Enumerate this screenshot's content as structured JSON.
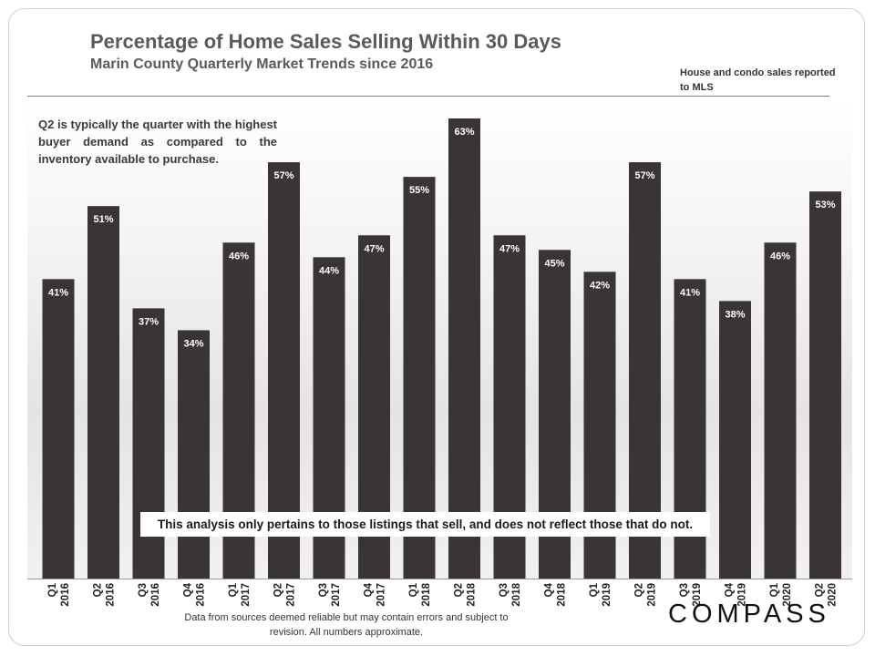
{
  "chart_data": {
    "type": "bar",
    "title": "Percentage of Home Sales Selling Within 30 Days",
    "subtitle": "Marin County Quarterly Market Trends since 2016",
    "categories": [
      [
        "Q1",
        "2016"
      ],
      [
        "Q2",
        "2016"
      ],
      [
        "Q3",
        "2016"
      ],
      [
        "Q4",
        "2016"
      ],
      [
        "Q1",
        "2017"
      ],
      [
        "Q2",
        "2017"
      ],
      [
        "Q3",
        "2017"
      ],
      [
        "Q4",
        "2017"
      ],
      [
        "Q1",
        "2018"
      ],
      [
        "Q2",
        "2018"
      ],
      [
        "Q3",
        "2018"
      ],
      [
        "Q4",
        "2018"
      ],
      [
        "Q1",
        "2019"
      ],
      [
        "Q2",
        "2019"
      ],
      [
        "Q3",
        "2019"
      ],
      [
        "Q4",
        "2019"
      ],
      [
        "Q1",
        "2020"
      ],
      [
        "Q2",
        "2020"
      ]
    ],
    "values": [
      41,
      51,
      37,
      34,
      46,
      57,
      44,
      47,
      55,
      63,
      47,
      45,
      42,
      57,
      41,
      38,
      46,
      53
    ],
    "value_suffix": "%",
    "ylim": [
      0,
      70
    ],
    "grid": false,
    "bar_color": "#3a3534"
  },
  "source_note": "House and condo sales reported to MLS",
  "annotation": "Q2 is typically the quarter with the highest buyer demand as compared to the inventory available to purchase.",
  "disclaimer": "This analysis only pertains to those listings that sell, and does not reflect those that do not.",
  "footer_note": "Data from sources deemed reliable but may contain errors and subject to revision. All numbers approximate.",
  "logo_text": "COMPASS"
}
